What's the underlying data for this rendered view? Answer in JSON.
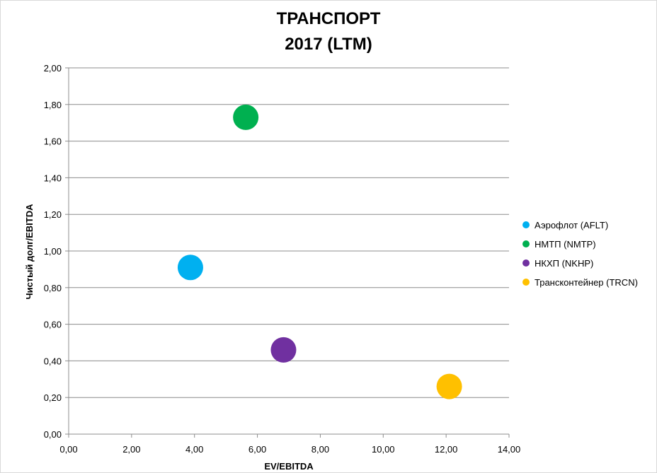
{
  "chart_data": {
    "type": "scatter",
    "title_lines": [
      "ТРАНСПОРТ",
      "2017 (LTM)"
    ],
    "xlabel": "EV/EBITDA",
    "ylabel": "Чистый долг/EBITDA",
    "xlim": [
      0,
      14
    ],
    "ylim": [
      0,
      2
    ],
    "x_ticks": [
      "0,00",
      "2,00",
      "4,00",
      "6,00",
      "8,00",
      "10,00",
      "12,00",
      "14,00"
    ],
    "y_ticks": [
      "0,00",
      "0,20",
      "0,40",
      "0,60",
      "0,80",
      "1,00",
      "1,20",
      "1,40",
      "1,60",
      "1,80",
      "2,00"
    ],
    "grid": "horizontal",
    "legend_position": "right",
    "series": [
      {
        "name": "Аэрофлот (AFLT)",
        "color": "#00b0f0",
        "x": 3.87,
        "y": 0.91
      },
      {
        "name": "НМТП (NMTP)",
        "color": "#00b050",
        "x": 5.63,
        "y": 1.73
      },
      {
        "name": "НКХП (NKHP)",
        "color": "#7030a0",
        "x": 6.83,
        "y": 0.46
      },
      {
        "name": "Трансконтейнер (TRCN)",
        "color": "#ffc000",
        "x": 12.1,
        "y": 0.26
      }
    ]
  }
}
